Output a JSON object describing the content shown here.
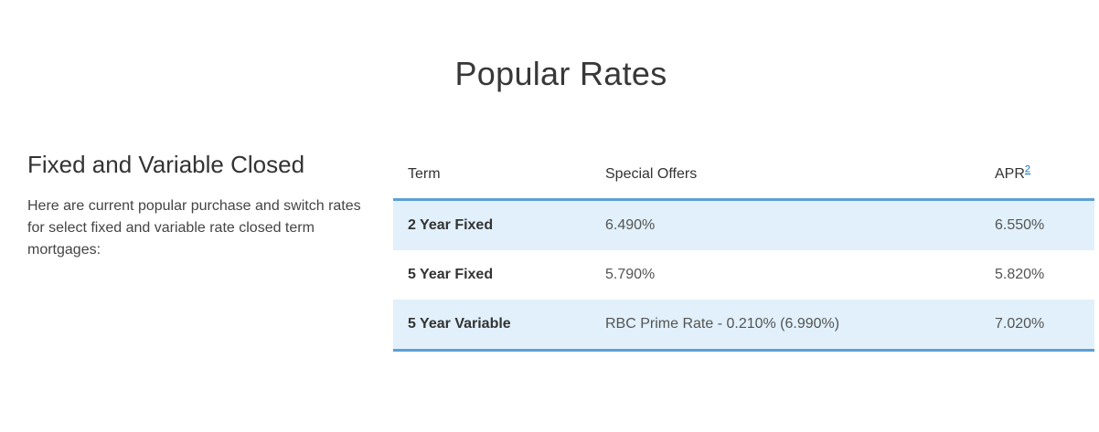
{
  "page": {
    "title": "Popular Rates"
  },
  "section": {
    "heading": "Fixed and Variable Closed",
    "description_lines": [
      "Here are current popular purchase and switch rates",
      "for select fixed and variable rate closed term",
      "mortgages:"
    ]
  },
  "rates_table": {
    "columns": {
      "term": "Term",
      "special_offers": "Special Offers",
      "apr": "APR",
      "apr_footnote": "2"
    },
    "rows": [
      {
        "term": "2 Year Fixed",
        "special_offer": "6.490%",
        "apr": "6.550%"
      },
      {
        "term": "5 Year Fixed",
        "special_offer": "5.790%",
        "apr": "5.820%"
      },
      {
        "term": "5 Year Variable",
        "special_offer": "RBC Prime Rate - 0.210% (6.990%)",
        "apr": "7.020%"
      }
    ]
  },
  "colors": {
    "accent_border": "#5c9fd6",
    "row_highlight": "#e1f0fa",
    "footnote_link": "#0e6eb8",
    "heading_text": "#383838",
    "body_text": "#444444"
  }
}
